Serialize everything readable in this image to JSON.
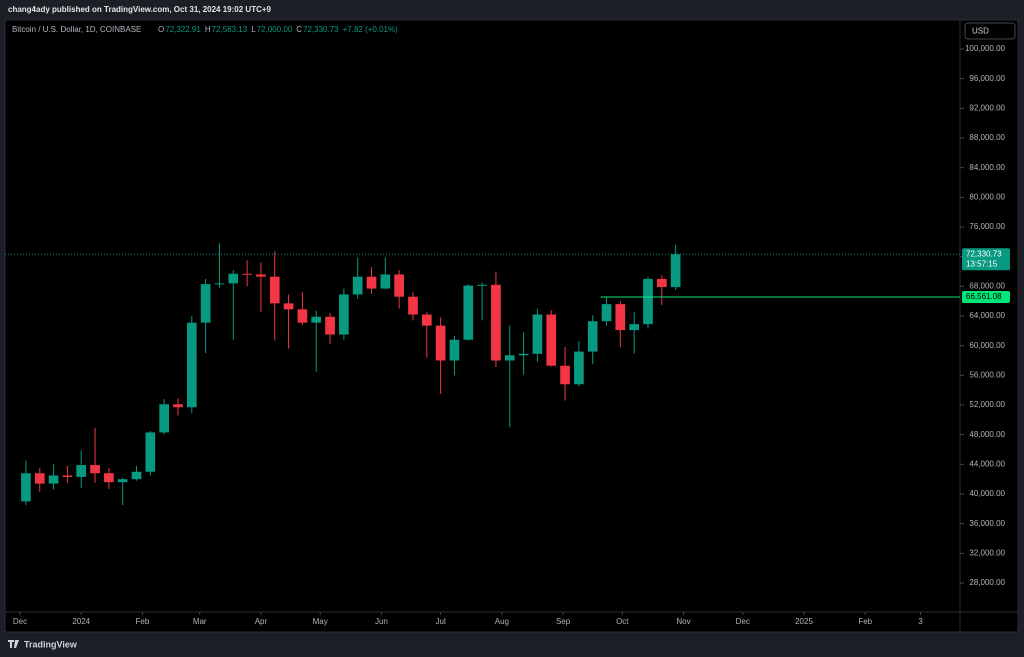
{
  "header": {
    "text": "chang4ady published on TradingView.com, Oct 31, 2024 19:02 UTC+9"
  },
  "footer": {
    "brand": "TradingView"
  },
  "chart_data": {
    "type": "candlestick",
    "symbol": "Bitcoin / U.S. Dollar, 1D, COINBASE",
    "legend_values": [
      {
        "key": "O",
        "value": "72,322.91"
      },
      {
        "key": "H",
        "value": "72,583.13"
      },
      {
        "key": "L",
        "value": "72,000.00"
      },
      {
        "key": "C",
        "value": "72,330.73"
      }
    ],
    "change": "+7.82 (+0.01%)",
    "currency": "USD",
    "up_color": "#089981",
    "down_color": "#f23645",
    "x": [
      3,
      10,
      17,
      24,
      31,
      38,
      45,
      52,
      59,
      66,
      73,
      80,
      87,
      94,
      101,
      108,
      115,
      122,
      129,
      136,
      143,
      150,
      157,
      164,
      171,
      178,
      185,
      192,
      199,
      206,
      213,
      220,
      227,
      234,
      241,
      248,
      255,
      262,
      269,
      276,
      283,
      290,
      297,
      304,
      311,
      318,
      325,
      332
    ],
    "open": [
      39000,
      42800,
      41400,
      42500,
      42300,
      43900,
      42800,
      41600,
      42000,
      43000,
      48300,
      52100,
      51700,
      63100,
      68300,
      68400,
      69700,
      69600,
      69300,
      65700,
      64900,
      63100,
      63900,
      61500,
      66900,
      69300,
      67700,
      69600,
      66600,
      64200,
      62700,
      58000,
      60800,
      68100,
      68200,
      58000,
      58700,
      58900,
      64200,
      57300,
      54800,
      59200,
      63300,
      65600,
      62100,
      62900,
      69000,
      67900
    ],
    "high": [
      44500,
      43500,
      44000,
      43800,
      45900,
      48900,
      43500,
      42200,
      43800,
      48500,
      52800,
      52900,
      64000,
      69000,
      73800,
      70200,
      71500,
      71200,
      72700,
      66900,
      67200,
      64700,
      64400,
      67700,
      71900,
      70600,
      71900,
      70200,
      67200,
      64500,
      63800,
      61300,
      68300,
      68500,
      70000,
      62700,
      61800,
      65000,
      64800,
      59800,
      60600,
      64100,
      66500,
      66000,
      64500,
      69300,
      69500,
      73600
    ],
    "low": [
      38500,
      40300,
      40600,
      41500,
      40800,
      41500,
      40700,
      38500,
      41800,
      42500,
      48000,
      50600,
      50900,
      59000,
      67800,
      60800,
      68000,
      64500,
      60700,
      59600,
      62800,
      56500,
      60200,
      60800,
      66300,
      67000,
      67600,
      65000,
      63400,
      58400,
      53500,
      56000,
      60700,
      63400,
      57100,
      49000,
      56100,
      57800,
      57200,
      52600,
      54500,
      57500,
      62700,
      59800,
      58900,
      62300,
      65500,
      67500
    ],
    "close": [
      42800,
      41400,
      42500,
      42300,
      43900,
      42800,
      41600,
      42000,
      43000,
      48300,
      52100,
      51700,
      63100,
      68300,
      68400,
      69700,
      69600,
      69300,
      65700,
      64900,
      63100,
      63900,
      61500,
      66900,
      69300,
      67700,
      69600,
      66600,
      64200,
      62700,
      58000,
      60800,
      68100,
      68200,
      58000,
      58700,
      58900,
      64200,
      57300,
      54800,
      59200,
      63300,
      65600,
      62100,
      62900,
      69000,
      67900,
      72330.73
    ],
    "xlim": [
      -7.6,
      476
    ],
    "xticks": [
      {
        "value": 0,
        "label": "Dec"
      },
      {
        "value": 31,
        "label": "2024"
      },
      {
        "value": 62,
        "label": "Feb"
      },
      {
        "value": 91,
        "label": "Mar"
      },
      {
        "value": 122,
        "label": "Apr"
      },
      {
        "value": 152,
        "label": "May"
      },
      {
        "value": 183,
        "label": "Jun"
      },
      {
        "value": 213,
        "label": "Jul"
      },
      {
        "value": 244,
        "label": "Aug"
      },
      {
        "value": 275,
        "label": "Sep"
      },
      {
        "value": 305,
        "label": "Oct"
      },
      {
        "value": 336,
        "label": "Nov"
      },
      {
        "value": 366,
        "label": "Dec"
      },
      {
        "value": 397,
        "label": "2025"
      },
      {
        "value": 428,
        "label": "Feb"
      },
      {
        "value": 456,
        "label": "3"
      }
    ],
    "ylim": [
      24090,
      103910
    ],
    "yticks": [
      {
        "value": 28000,
        "label": "28,000.00"
      },
      {
        "value": 32000,
        "label": "32,000.00"
      },
      {
        "value": 36000,
        "label": "36,000.00"
      },
      {
        "value": 40000,
        "label": "40,000.00"
      },
      {
        "value": 44000,
        "label": "44,000.00"
      },
      {
        "value": 48000,
        "label": "48,000.00"
      },
      {
        "value": 52000,
        "label": "52,000.00"
      },
      {
        "value": 56000,
        "label": "56,000.00"
      },
      {
        "value": 60000,
        "label": "60,000.00"
      },
      {
        "value": 64000,
        "label": "64,000.00"
      },
      {
        "value": 68000,
        "label": "68,000.00"
      },
      {
        "value": 72000,
        "label": "72,000.00"
      },
      {
        "value": 76000,
        "label": "76,000.00"
      },
      {
        "value": 80000,
        "label": "80,000.00"
      },
      {
        "value": 84000,
        "label": "84,000.00"
      },
      {
        "value": 88000,
        "label": "88,000.00"
      },
      {
        "value": 92000,
        "label": "92,000.00"
      },
      {
        "value": 96000,
        "label": "96,000.00"
      },
      {
        "value": 100000,
        "label": "100,000.00"
      }
    ],
    "last_price": {
      "value": 72330.73,
      "label": "72,330.73",
      "countdown": "13:57:15"
    },
    "level": {
      "value": 66561.08,
      "label": "66,561.08",
      "start": 294
    }
  }
}
